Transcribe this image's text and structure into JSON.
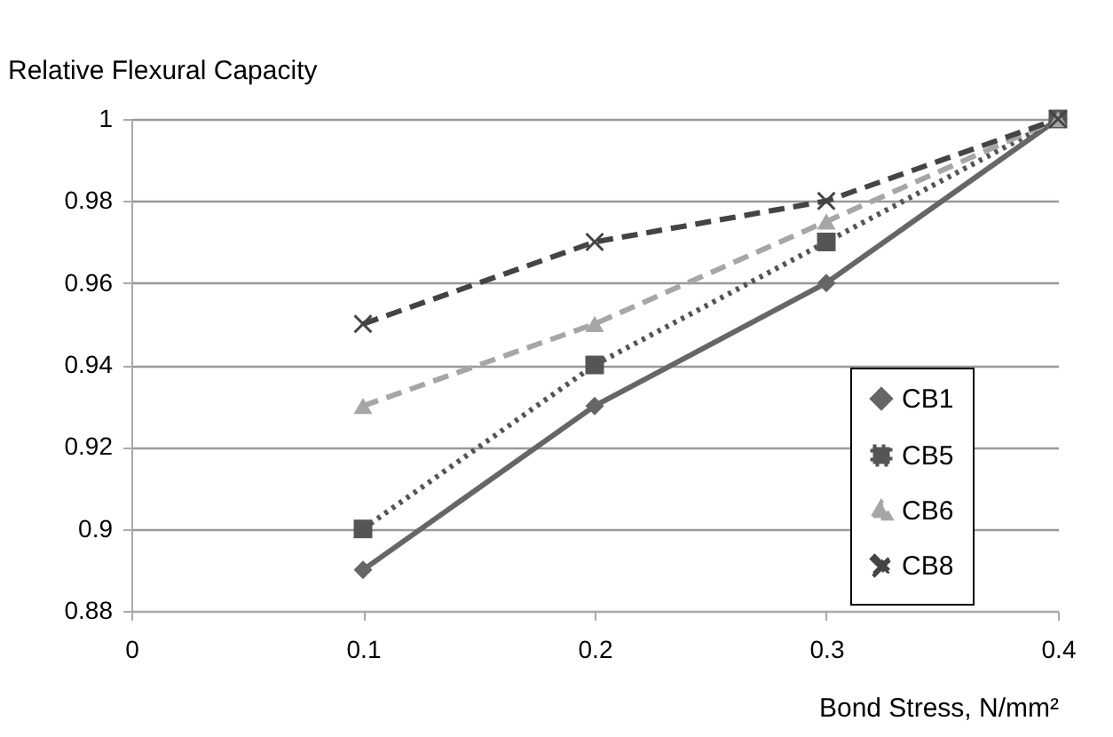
{
  "chart_data": {
    "type": "line",
    "ylabel": "Relative Flexural Capacity",
    "xlabel": "Bond Stress, N/mm²",
    "x": [
      0.1,
      0.2,
      0.3,
      0.4
    ],
    "xlim": [
      0,
      0.4
    ],
    "xticks": [
      0,
      0.1,
      0.2,
      0.3,
      0.4
    ],
    "ylim": [
      0.88,
      1
    ],
    "yticks": [
      0.88,
      0.9,
      0.92,
      0.94,
      0.96,
      0.98,
      1
    ],
    "grid": "y",
    "legend": "right",
    "series": [
      {
        "name": "CB1",
        "color": "#666666",
        "marker": "diamond",
        "line_style": "solid",
        "values": [
          0.89,
          0.93,
          0.96,
          1
        ]
      },
      {
        "name": "CB5",
        "color": "#555555",
        "marker": "square",
        "line_style": "dotted",
        "values": [
          0.9,
          0.94,
          0.97,
          1
        ]
      },
      {
        "name": "CB6",
        "color": "#a6a6a6",
        "marker": "triangle",
        "line_style": "dashed",
        "values": [
          0.93,
          0.95,
          0.975,
          1
        ]
      },
      {
        "name": "CB8",
        "color": "#444444",
        "marker": "cross",
        "line_style": "dashed",
        "values": [
          0.95,
          0.97,
          0.98,
          1
        ]
      }
    ]
  }
}
